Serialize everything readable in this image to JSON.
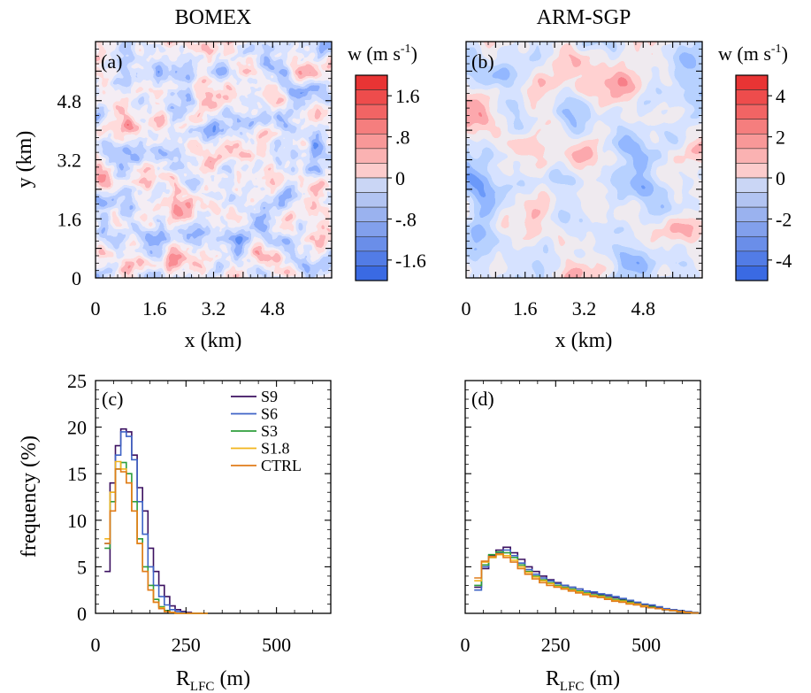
{
  "panels": {
    "a": {
      "title": "BOMEX",
      "tag": "(a)",
      "xlabel": "x (km)",
      "ylabel": "y (km)",
      "xticks": [
        "0",
        "1.6",
        "3.2",
        "4.8"
      ],
      "yticks": [
        "0",
        "1.6",
        "3.2",
        "4.8"
      ],
      "colorbar": {
        "label": "w (m s",
        "label_sup": "-1",
        "label_end": ")",
        "ticks": [
          "1.6",
          ".8",
          "0",
          "-.8",
          "-1.6"
        ],
        "range": [
          -2,
          2
        ]
      }
    },
    "b": {
      "title": "ARM-SGP",
      "tag": "(b)",
      "xlabel": "x (km)",
      "xticks": [
        "0",
        "1.6",
        "3.2",
        "4.8"
      ],
      "colorbar": {
        "label": "w (m s",
        "label_sup": "-1",
        "label_end": ")",
        "ticks": [
          "4",
          "2",
          "0",
          "-2",
          "-4"
        ],
        "range": [
          -5,
          5
        ]
      }
    },
    "c": {
      "tag": "(c)",
      "ylabel": "frequency (%)",
      "xlabel_main": "R",
      "xlabel_sub": "LFC",
      "xlabel_unit": " (m)",
      "xticks": [
        "0",
        "250",
        "500"
      ],
      "yticks": [
        "0",
        "5",
        "10",
        "15",
        "20",
        "25"
      ]
    },
    "d": {
      "tag": "(d)",
      "xlabel_main": "R",
      "xlabel_sub": "LFC",
      "xlabel_unit": " (m)",
      "xticks": [
        "0",
        "250",
        "500"
      ]
    }
  },
  "colors": {
    "S9": "#3b1060",
    "S6": "#3e63c6",
    "S3": "#2e9e3c",
    "S1.8": "#f2b51c",
    "CTRL": "#e07c1a",
    "field_pos": "#e03232",
    "field_neg": "#4169e1"
  },
  "chart_data": [
    {
      "type": "heatmap",
      "panel": "a",
      "title": "BOMEX",
      "xlabel": "x (km)",
      "ylabel": "y (km)",
      "xlim": [
        0,
        6.4
      ],
      "ylim": [
        0,
        6.4
      ],
      "clim": [
        -2,
        2
      ],
      "colorbar_ticks": [
        1.6,
        0.8,
        0,
        -0.8,
        -1.6
      ]
    },
    {
      "type": "heatmap",
      "panel": "b",
      "title": "ARM-SGP",
      "xlabel": "x (km)",
      "xlim": [
        0,
        6.4
      ],
      "ylim": [
        0,
        6.4
      ],
      "clim": [
        -5,
        5
      ],
      "colorbar_ticks": [
        4,
        2,
        0,
        -2,
        -4
      ]
    },
    {
      "type": "line",
      "panel": "c",
      "xlabel": "R_LFC (m)",
      "ylabel": "frequency (%)",
      "xlim": [
        0,
        650
      ],
      "ylim": [
        0,
        25
      ],
      "bin_edges": [
        25,
        40,
        55,
        70,
        85,
        100,
        115,
        130,
        145,
        160,
        175,
        190,
        205,
        220,
        235,
        250,
        265,
        280,
        295,
        310
      ],
      "series": [
        {
          "name": "S9",
          "values": [
            4.5,
            14,
            18,
            19.8,
            19.5,
            17,
            13.5,
            11,
            7,
            4.5,
            3,
            1.8,
            0.8,
            0.4,
            0.2,
            0.1,
            0,
            0,
            0
          ]
        },
        {
          "name": "S6",
          "values": [
            7.5,
            13,
            17,
            19.5,
            19,
            16.5,
            12,
            8.5,
            5,
            3,
            1.8,
            0.9,
            0.4,
            0.2,
            0.1,
            0,
            0,
            0,
            0
          ]
        },
        {
          "name": "S3",
          "values": [
            7,
            12,
            15.5,
            16.2,
            15,
            12,
            8,
            5,
            3,
            1.5,
            0.7,
            0.3,
            0.1,
            0,
            0,
            0,
            0,
            0,
            0
          ]
        },
        {
          "name": "S1.8",
          "values": [
            8,
            13,
            16.3,
            15.5,
            14,
            11,
            7.5,
            4.5,
            2.5,
            1.2,
            0.6,
            0.2,
            0.1,
            0,
            0,
            0,
            0,
            0,
            0
          ]
        },
        {
          "name": "CTRL",
          "values": [
            7.5,
            11,
            15.5,
            15.2,
            14,
            11,
            7.5,
            4.5,
            2.5,
            1.2,
            0.5,
            0.2,
            0.1,
            0,
            0,
            0,
            0,
            0,
            0
          ]
        }
      ],
      "legend": [
        "S9",
        "S6",
        "S3",
        "S1.8",
        "CTRL"
      ],
      "legend_placement": "top-right"
    },
    {
      "type": "line",
      "panel": "d",
      "xlabel": "R_LFC (m)",
      "xlim": [
        0,
        650
      ],
      "ylim": [
        0,
        25
      ],
      "bin_edges": [
        25,
        45,
        65,
        85,
        105,
        125,
        145,
        165,
        185,
        205,
        225,
        245,
        265,
        285,
        305,
        325,
        345,
        365,
        385,
        405,
        425,
        445,
        465,
        485,
        505,
        525,
        545,
        565,
        585,
        605,
        625,
        645
      ],
      "series": [
        {
          "name": "S9",
          "values": [
            2.8,
            4.8,
            6.2,
            6.8,
            7.1,
            6.5,
            5.8,
            5.0,
            4.5,
            4.0,
            3.6,
            3.3,
            3.0,
            2.8,
            2.6,
            2.4,
            2.2,
            2.0,
            1.9,
            1.7,
            1.5,
            1.3,
            1.1,
            0.9,
            0.8,
            0.6,
            0.4,
            0.3,
            0.2,
            0.1,
            0.05
          ]
        },
        {
          "name": "S6",
          "values": [
            2.5,
            5.0,
            6.0,
            6.5,
            6.8,
            6.2,
            5.4,
            4.7,
            4.2,
            3.8,
            3.5,
            3.2,
            3.0,
            2.8,
            2.6,
            2.4,
            2.3,
            2.1,
            2.0,
            1.8,
            1.6,
            1.4,
            1.2,
            1.0,
            0.9,
            0.7,
            0.5,
            0.4,
            0.3,
            0.2,
            0.1
          ]
        },
        {
          "name": "S3",
          "values": [
            3.0,
            5.2,
            6.3,
            6.6,
            6.5,
            6.0,
            5.2,
            4.5,
            4.0,
            3.6,
            3.3,
            3.0,
            2.8,
            2.6,
            2.4,
            2.2,
            2.0,
            1.9,
            1.7,
            1.5,
            1.4,
            1.2,
            1.0,
            0.8,
            0.7,
            0.5,
            0.4,
            0.3,
            0.2,
            0.1,
            0.05
          ]
        },
        {
          "name": "S1.8",
          "values": [
            3.5,
            5.5,
            6.0,
            6.3,
            6.2,
            5.7,
            5.0,
            4.4,
            3.9,
            3.5,
            3.2,
            2.9,
            2.7,
            2.5,
            2.3,
            2.1,
            1.9,
            1.8,
            1.6,
            1.4,
            1.3,
            1.1,
            1.0,
            0.8,
            0.6,
            0.5,
            0.4,
            0.3,
            0.2,
            0.1,
            0.05
          ]
        },
        {
          "name": "CTRL",
          "values": [
            3.8,
            5.6,
            6.1,
            6.4,
            6.0,
            5.5,
            4.8,
            4.2,
            3.7,
            3.3,
            3.0,
            2.8,
            2.6,
            2.4,
            2.2,
            2.0,
            1.8,
            1.7,
            1.5,
            1.3,
            1.2,
            1.0,
            0.9,
            0.7,
            0.6,
            0.5,
            0.4,
            0.3,
            0.2,
            0.1,
            0.05
          ]
        }
      ]
    }
  ]
}
